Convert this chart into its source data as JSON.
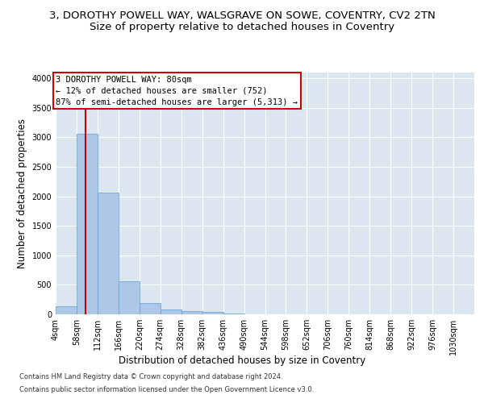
{
  "title_line1": "3, DOROTHY POWELL WAY, WALSGRAVE ON SOWE, COVENTRY, CV2 2TN",
  "title_line2": "Size of property relative to detached houses in Coventry",
  "xlabel": "Distribution of detached houses by size in Coventry",
  "ylabel": "Number of detached properties",
  "footer_line1": "Contains HM Land Registry data © Crown copyright and database right 2024.",
  "footer_line2": "Contains public sector information licensed under the Open Government Licence v3.0.",
  "bin_edges": [
    4,
    58,
    112,
    166,
    220,
    274,
    328,
    382,
    436,
    490,
    544,
    598,
    652,
    706,
    760,
    814,
    868,
    922,
    976,
    1030,
    1084
  ],
  "bar_heights": [
    140,
    3060,
    2060,
    560,
    195,
    80,
    55,
    40,
    10,
    5,
    3,
    2,
    1,
    1,
    0,
    0,
    0,
    0,
    0,
    0
  ],
  "bar_color": "#aec6e8",
  "bar_edge_color": "#5a9fd4",
  "property_size": 80,
  "vline_color": "#cc0000",
  "annotation_text": "3 DOROTHY POWELL WAY: 80sqm\n← 12% of detached houses are smaller (752)\n87% of semi-detached houses are larger (5,313) →",
  "annotation_box_color": "#cc0000",
  "ylim": [
    0,
    4100
  ],
  "yticks": [
    0,
    500,
    1000,
    1500,
    2000,
    2500,
    3000,
    3500,
    4000
  ],
  "background_color": "#dce6f1",
  "grid_color": "#ffffff",
  "title_fontsize": 9.5,
  "subtitle_fontsize": 9.5,
  "axis_label_fontsize": 8.5,
  "tick_fontsize": 7,
  "annotation_fontsize": 7.5,
  "footer_fontsize": 6.0
}
